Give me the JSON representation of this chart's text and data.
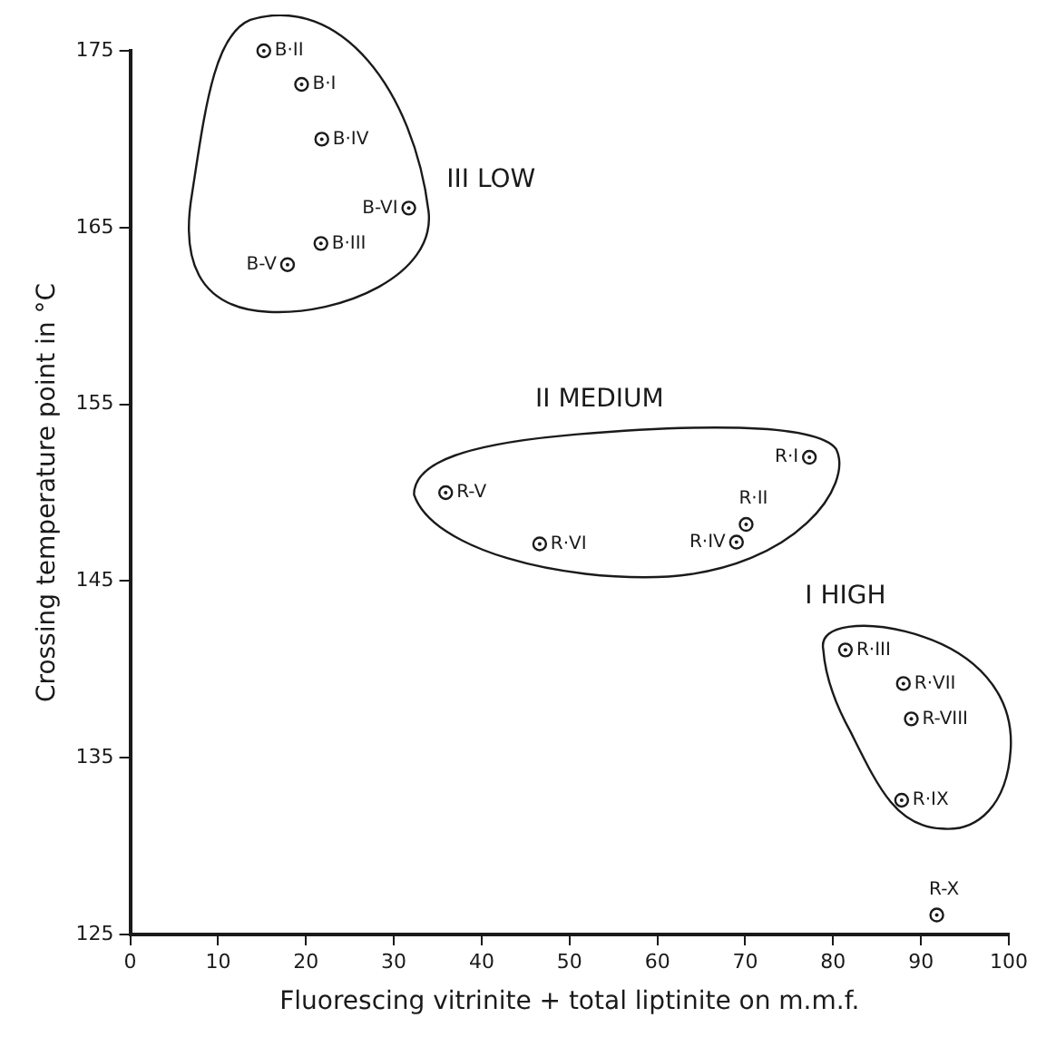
{
  "chart_data": {
    "type": "scatter",
    "xlabel": "Fluorescing vitrinite + total liptinite on m.m.f.",
    "ylabel": "Crossing temperature point in °C",
    "series": [
      {
        "color": "#1a1a1a",
        "x": [
          15.2,
          19.5,
          21.8,
          31.7,
          21.7,
          17.9,
          35.9,
          46.6,
          69.0,
          70.1,
          77.3,
          81.4,
          88.0,
          88.9,
          87.8,
          91.8
        ],
        "values": [
          175.0,
          173.1,
          170.0,
          166.1,
          164.1,
          162.9,
          150.0,
          147.1,
          147.2,
          148.2,
          152.0,
          141.1,
          139.2,
          137.2,
          132.6,
          126.1
        ]
      }
    ],
    "marker": "circle",
    "xlim": [
      0,
      100
    ],
    "xticks": [
      0,
      10,
      20,
      30,
      40,
      50,
      60,
      70,
      80,
      90,
      100
    ],
    "ylim": [
      125,
      175
    ],
    "yticks": [
      125,
      135,
      145,
      155,
      165,
      175
    ],
    "grid": false,
    "legend": false,
    "annotations": [
      {
        "text": "B·II",
        "x": 15.2,
        "y": 175.0
      },
      {
        "text": "B·I",
        "x": 19.5,
        "y": 173.1
      },
      {
        "text": "B·IV",
        "x": 21.8,
        "y": 170.0
      },
      {
        "text": "B-VI",
        "x": 31.7,
        "y": 166.1
      },
      {
        "text": "B·III",
        "x": 21.7,
        "y": 164.1
      },
      {
        "text": "B-V",
        "x": 17.9,
        "y": 162.9
      },
      {
        "text": "R-V",
        "x": 35.9,
        "y": 150.0
      },
      {
        "text": "R·VI",
        "x": 46.6,
        "y": 147.1
      },
      {
        "text": "R·IV",
        "x": 69.0,
        "y": 147.2
      },
      {
        "text": "R·II",
        "x": 70.1,
        "y": 148.2
      },
      {
        "text": "R·I",
        "x": 77.3,
        "y": 152.0
      },
      {
        "text": "R·III",
        "x": 81.4,
        "y": 141.1
      },
      {
        "text": "R·VII",
        "x": 88.0,
        "y": 139.2
      },
      {
        "text": "R-VIII",
        "x": 88.9,
        "y": 137.2
      },
      {
        "text": "R·IX",
        "x": 87.8,
        "y": 132.6
      },
      {
        "text": "R-X",
        "x": 91.8,
        "y": 126.1
      },
      "III LOW",
      "II MEDIUM",
      "I HIGH"
    ]
  }
}
